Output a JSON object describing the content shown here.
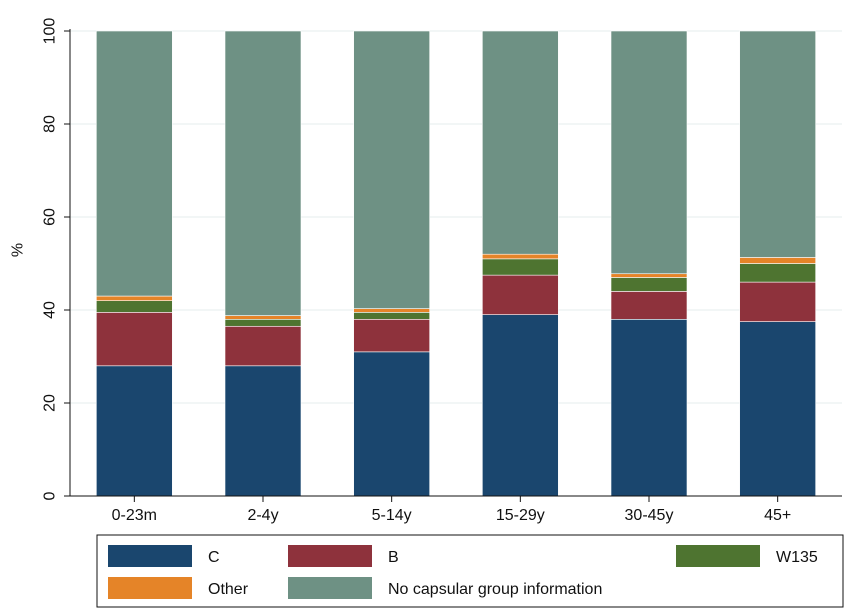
{
  "chart_data": {
    "type": "bar",
    "stacked": true,
    "categories": [
      "0-23m",
      "2-4y",
      "5-14y",
      "15-29y",
      "30-45y",
      "45+"
    ],
    "ylabel": "%",
    "ylim": [
      0,
      100
    ],
    "yticks": [
      0,
      20,
      40,
      60,
      80,
      100
    ],
    "grid": true,
    "legend_position": "bottom",
    "series": [
      {
        "name": "C",
        "color": "#1a466e",
        "values": [
          28,
          28,
          31,
          39,
          38,
          37.5
        ]
      },
      {
        "name": "B",
        "color": "#8e323c",
        "values": [
          11.5,
          8.5,
          7,
          8.5,
          6,
          8.5
        ]
      },
      {
        "name": "W135",
        "color": "#4e7430",
        "values": [
          2.5,
          1.5,
          1.5,
          3.5,
          3,
          4
        ]
      },
      {
        "name": "Other",
        "color": "#e58428",
        "values": [
          1,
          0.8,
          0.8,
          1,
          0.8,
          1.3
        ]
      },
      {
        "name": "No capsular group information",
        "color": "#6e9184",
        "values": [
          57,
          61.2,
          59.7,
          48,
          52.2,
          48.7
        ]
      }
    ],
    "legend_order": [
      "C",
      "B",
      "W135",
      "Other",
      "No capsular group information"
    ]
  }
}
